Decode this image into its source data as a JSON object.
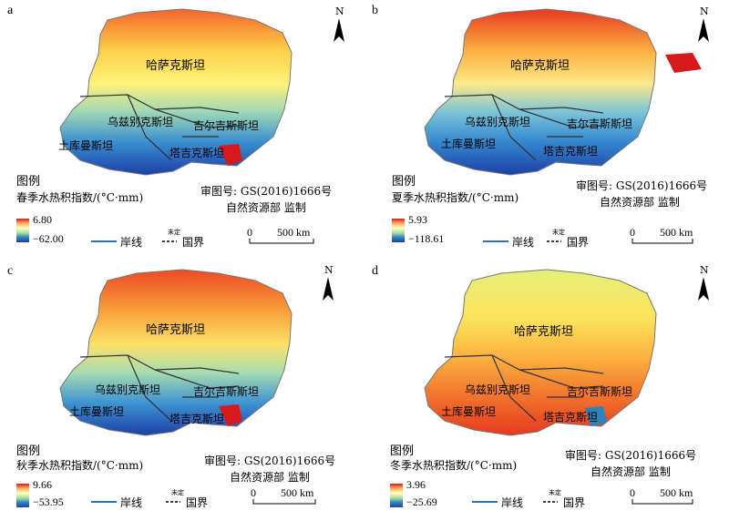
{
  "panels": [
    {
      "label": "a",
      "legend_heading": "图例",
      "index_title": "春季水热积指数/(°C·mm)",
      "max": "6.80",
      "min": "−62.00"
    },
    {
      "label": "b",
      "legend_heading": "图例",
      "index_title": "夏季水热积指数/(°C·mm)",
      "max": "5.93",
      "min": "−118.61"
    },
    {
      "label": "c",
      "legend_heading": "图例",
      "index_title": "秋季水热积指数/(°C·mm)",
      "max": "9.66",
      "min": "−53.95"
    },
    {
      "label": "d",
      "legend_heading": "图例",
      "index_title": "冬季水热积指数/(°C·mm)",
      "max": "3.96",
      "min": "−25.69"
    }
  ],
  "countries": {
    "kazakhstan": "哈萨克斯坦",
    "uzbekistan": "乌兹别克斯坦",
    "kyrgyzstan": "吉尔吉斯斯坦",
    "turkmenistan": "土库曼斯坦",
    "tajikistan": "塔吉克斯坦"
  },
  "legend_items": {
    "coastline": "岸线",
    "undetermined": "未定",
    "border": "国界"
  },
  "approval": {
    "number": "审图号: GS(2016)1666号",
    "agency": "自然资源部 监制"
  },
  "scale_bar": {
    "zero": "0",
    "distance": "500 km"
  },
  "north_arrow": "N",
  "colors": {
    "high": "#d7191c",
    "mid_high": "#fdae61",
    "mid": "#ffffbf",
    "mid_low": "#abdda4",
    "low": "#2b83ba",
    "very_low": "#1f3ea8"
  }
}
